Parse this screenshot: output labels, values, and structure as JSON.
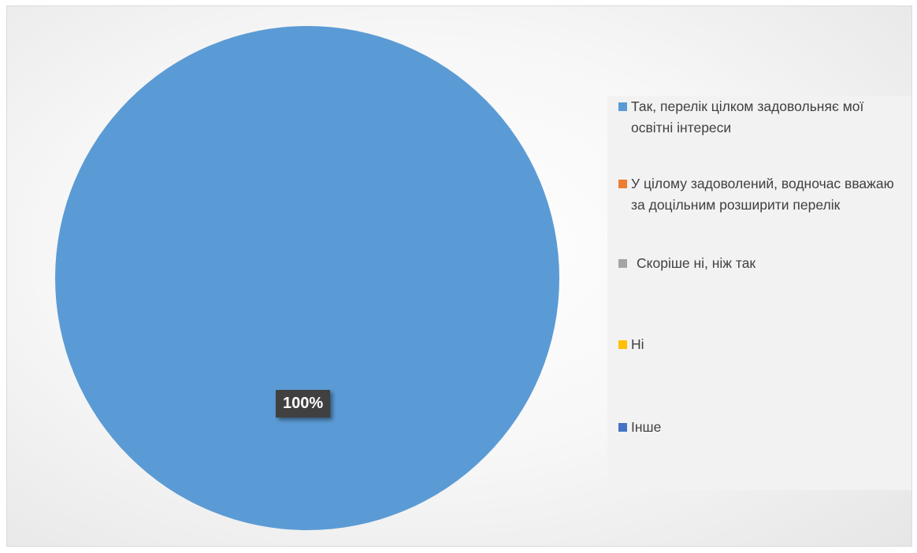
{
  "chart_data": {
    "type": "pie",
    "categories": [
      "Так, перелік цілком задовольняє мої освітні інтереси",
      "У цілому задоволений, водночас вважаю за доцільним розширити перелік",
      "Скоріше ні, ніж так",
      "Ні",
      "Інше"
    ],
    "values": [
      100,
      0,
      0,
      0,
      0
    ],
    "data_labels": [
      "100%"
    ],
    "colors": [
      "#5b9bd5",
      "#ed7d31",
      "#a5a5a5",
      "#ffc000",
      "#4472c4"
    ],
    "title": "",
    "legend_position": "right"
  }
}
